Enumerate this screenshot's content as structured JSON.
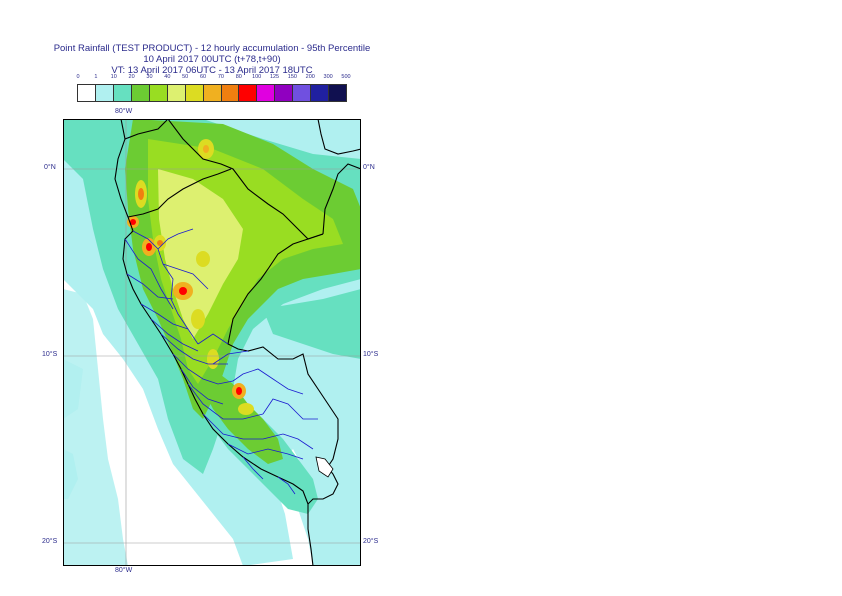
{
  "title": {
    "line1": "Point Rainfall (TEST PRODUCT) - 12 hourly accumulation - 95th Percentile",
    "line2": "10 April 2017 00UTC (t+78,t+90)",
    "line3": "VT: 13 April 2017 06UTC - 13 April 2017 18UTC"
  },
  "legend": {
    "labels": [
      "0",
      "1",
      "10",
      "20",
      "30",
      "40",
      "50",
      "60",
      "70",
      "80",
      "100",
      "125",
      "150",
      "200",
      "300",
      "500"
    ],
    "colors": [
      "#ffffff",
      "#b0f0f0",
      "#66e0c0",
      "#6ccc33",
      "#99dd22",
      "#ddf070",
      "#dcdc22",
      "#f0b020",
      "#f07f10",
      "#ff0000",
      "#e000e0",
      "#9000c0",
      "#7050e0",
      "#2020a0",
      "#101050"
    ]
  },
  "axes": {
    "lon_top": "80°W",
    "lon_bottom": "80°W",
    "lat_left": [
      "0°N",
      "10°S",
      "20°S"
    ],
    "lat_right": [
      "0°N",
      "10°S",
      "20°S"
    ]
  }
}
